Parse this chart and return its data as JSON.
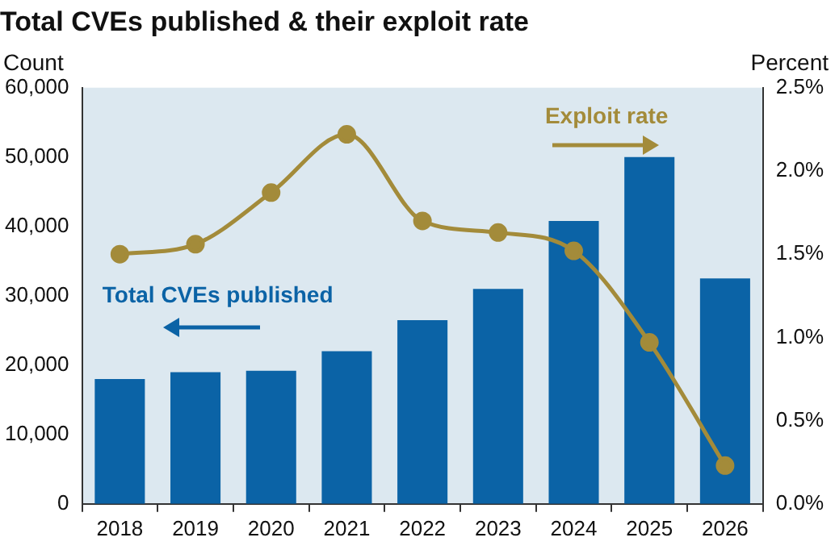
{
  "chart_data": {
    "type": "bar",
    "title": "Total CVEs published & their exploit rate",
    "ylabel": "Count",
    "y2label": "Percent",
    "categories": [
      "2018",
      "2019",
      "2020",
      "2021",
      "2022",
      "2023",
      "2024",
      "2025",
      "2026"
    ],
    "series": [
      {
        "name": "Total CVEs published",
        "color": "#0b63a6",
        "values": [
          18000,
          19000,
          19200,
          22000,
          26500,
          31000,
          40800,
          50000,
          32500
        ]
      },
      {
        "name": "Exploit rate",
        "type": "line",
        "axis": "y2",
        "color": "#a38b3a",
        "values": [
          1.5,
          1.56,
          1.87,
          2.22,
          1.7,
          1.63,
          1.52,
          0.97,
          0.23
        ]
      }
    ],
    "ylim": [
      0,
      60000
    ],
    "yticks": [
      0,
      {
        "value": 10000,
        "label": "10,000"
      },
      {
        "value": 20000,
        "label": "20,000"
      },
      {
        "value": 30000,
        "label": "30,000"
      },
      {
        "value": 40000,
        "label": "40,000"
      },
      {
        "value": 50000,
        "label": "50,000"
      },
      {
        "value": 60000,
        "label": "60,000"
      }
    ],
    "y2lim": [
      0,
      2.5
    ],
    "y2ticks": [
      {
        "value": 0,
        "label": "0.0%"
      },
      {
        "value": 0.5,
        "label": "0.5%"
      },
      {
        "value": 1,
        "label": "1.0%"
      },
      {
        "value": 1.5,
        "label": "1.5%"
      },
      {
        "value": 2,
        "label": "2.0%"
      },
      {
        "value": 2.5,
        "label": "2.5%"
      }
    ],
    "grid": false,
    "legend": "top left",
    "marker": "circle",
    "line_style": "solid"
  }
}
